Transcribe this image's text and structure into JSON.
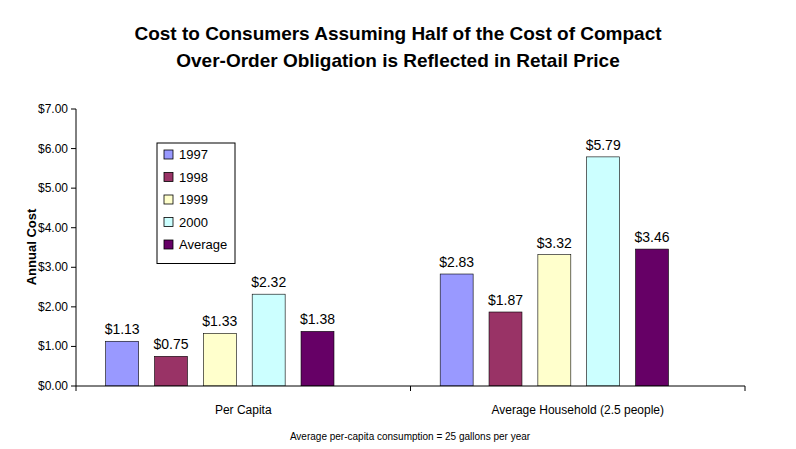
{
  "chart_data": {
    "type": "bar",
    "title": "Cost to Consumers Assuming Half of the Cost of Compact\nOver-Order Obligation is Reflected in Retail Price",
    "y_label": "Annual Cost",
    "annotations": [
      "Average per-capita consumption = 25 gallons per year"
    ],
    "categories": [
      "Per Capita",
      "Average Household (2.5 people)"
    ],
    "series": [
      {
        "name": "1997",
        "color": "#9999ff",
        "values": [
          1.13,
          2.83
        ],
        "value_labels": [
          "$1.13",
          "$2.83"
        ]
      },
      {
        "name": "1998",
        "color": "#993366",
        "values": [
          0.75,
          1.87
        ],
        "value_labels": [
          "$0.75",
          "$1.87"
        ]
      },
      {
        "name": "1999",
        "color": "#ffffcc",
        "values": [
          1.33,
          3.32
        ],
        "value_labels": [
          "$1.33",
          "$3.32"
        ]
      },
      {
        "name": "2000",
        "color": "#ccffff",
        "values": [
          2.32,
          5.79
        ],
        "value_labels": [
          "$2.32",
          "$5.79"
        ]
      },
      {
        "name": "Average",
        "color": "#660066",
        "values": [
          1.38,
          3.46
        ],
        "value_labels": [
          "$1.38",
          "$3.46"
        ]
      }
    ],
    "ylim": [
      0,
      7
    ],
    "yticks": [
      {
        "value": 0,
        "label": "$0.00"
      },
      {
        "value": 1,
        "label": "$1.00"
      },
      {
        "value": 2,
        "label": "$2.00"
      },
      {
        "value": 3,
        "label": "$3.00"
      },
      {
        "value": 4,
        "label": "$4.00"
      },
      {
        "value": 5,
        "label": "$5.00"
      },
      {
        "value": 6,
        "label": "$6.00"
      },
      {
        "value": 7,
        "label": "$7.00"
      }
    ],
    "grid": false,
    "legend": "upper left",
    "data_labels": true
  }
}
